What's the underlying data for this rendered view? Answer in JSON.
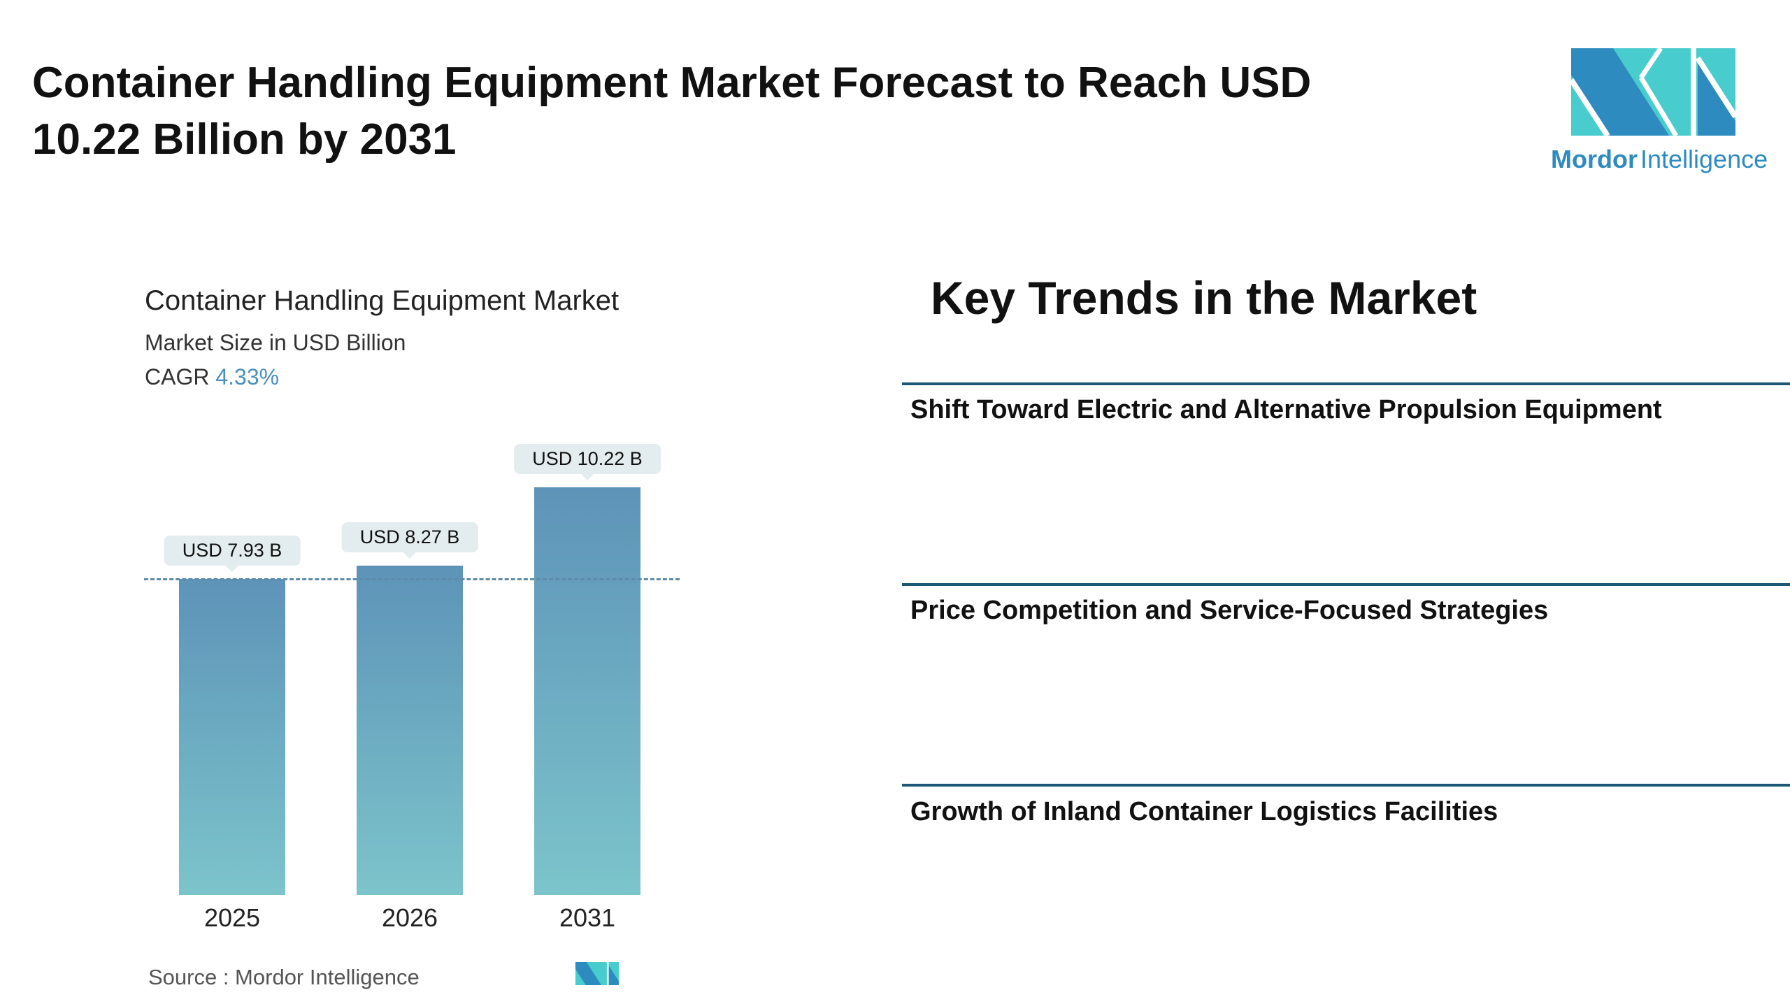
{
  "title": "Container Handling Equipment Market Forecast to Reach USD 10.22 Billion by 2031",
  "logo": {
    "text_bold": "Mordor",
    "text_light": "Intelligence",
    "colors": {
      "dark": "#2e8bc0",
      "light": "#48cccd"
    }
  },
  "chart_data": {
    "type": "bar",
    "title": "Container Handling Equipment Market",
    "subtitle": "Market Size in USD Billion",
    "cagr_label": "CAGR",
    "cagr_value": "4.33%",
    "categories": [
      "2025",
      "2026",
      "2031"
    ],
    "values": [
      7.93,
      8.27,
      10.22
    ],
    "data_labels": [
      "USD 7.93 B",
      "USD 8.27 B",
      "USD 10.22 B"
    ],
    "reference_line": 7.93,
    "grid": false,
    "colors": {
      "bar_top": "#5d93b8",
      "bar_bottom": "#7cc4cb"
    }
  },
  "source": "Source :  Mordor Intelligence",
  "trends": {
    "heading": "Key Trends in the Market",
    "items": [
      "Shift Toward Electric and Alternative Propulsion Equipment",
      "Price Competition and Service-Focused Strategies",
      "Growth of Inland Container Logistics Facilities"
    ]
  }
}
